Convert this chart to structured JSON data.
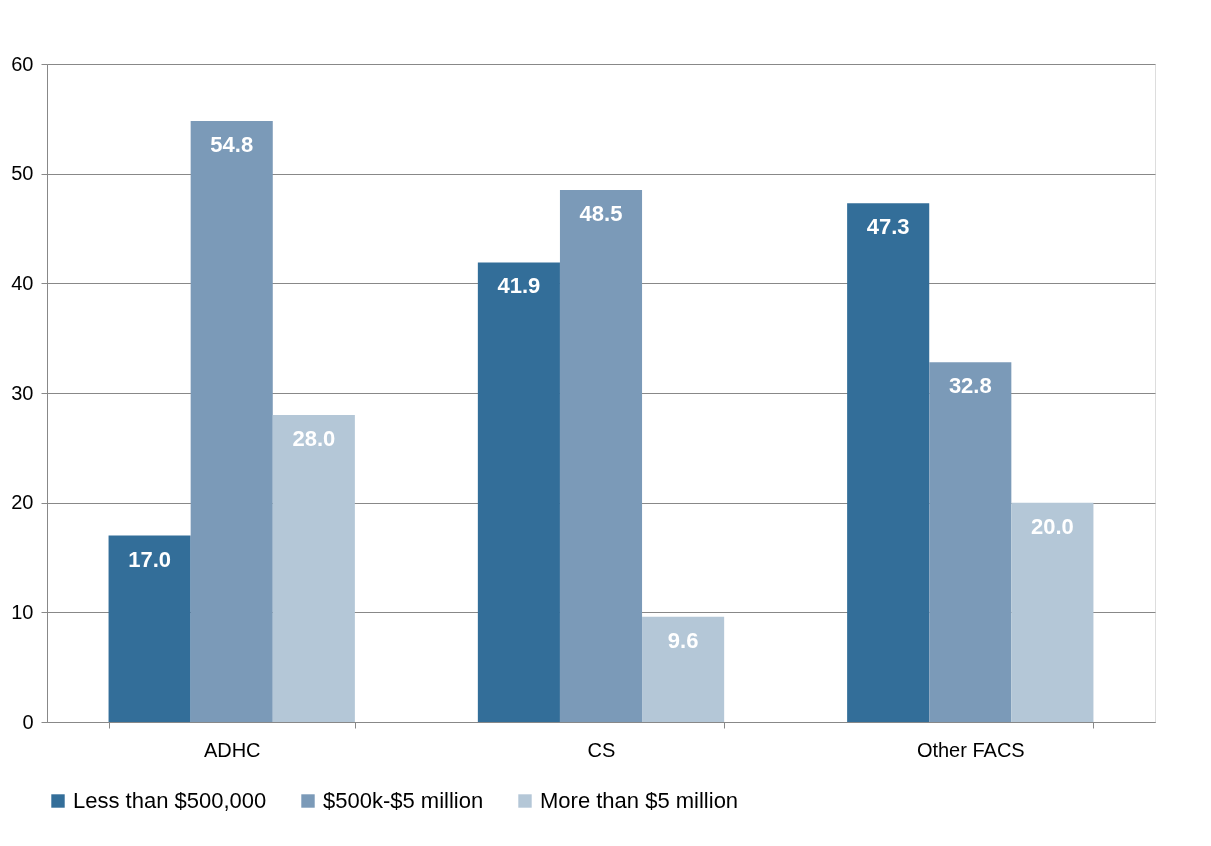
{
  "chart_data": {
    "type": "bar",
    "categories": [
      "ADHC",
      "CS",
      "Other FACS"
    ],
    "series": [
      {
        "name": "Less than $500,000",
        "color": "#336e99",
        "values": [
          17.0,
          41.9,
          47.3
        ],
        "value_labels": [
          "17.0",
          "41.9",
          "47.3"
        ]
      },
      {
        "name": "$500k-$5 million",
        "color": "#7b9ab8",
        "values": [
          54.8,
          48.5,
          32.8
        ],
        "value_labels": [
          "54.8",
          "48.5",
          "32.8"
        ]
      },
      {
        "name": "More than $5 million",
        "color": "#b4c7d7",
        "values": [
          28.0,
          9.6,
          20.0
        ],
        "value_labels": [
          "28.0",
          "9.6",
          "20.0"
        ]
      }
    ],
    "ylim": [
      0,
      60
    ],
    "yticks": [
      0,
      10,
      20,
      30,
      40,
      50,
      60
    ],
    "grid": "y",
    "legend": "bottom"
  }
}
